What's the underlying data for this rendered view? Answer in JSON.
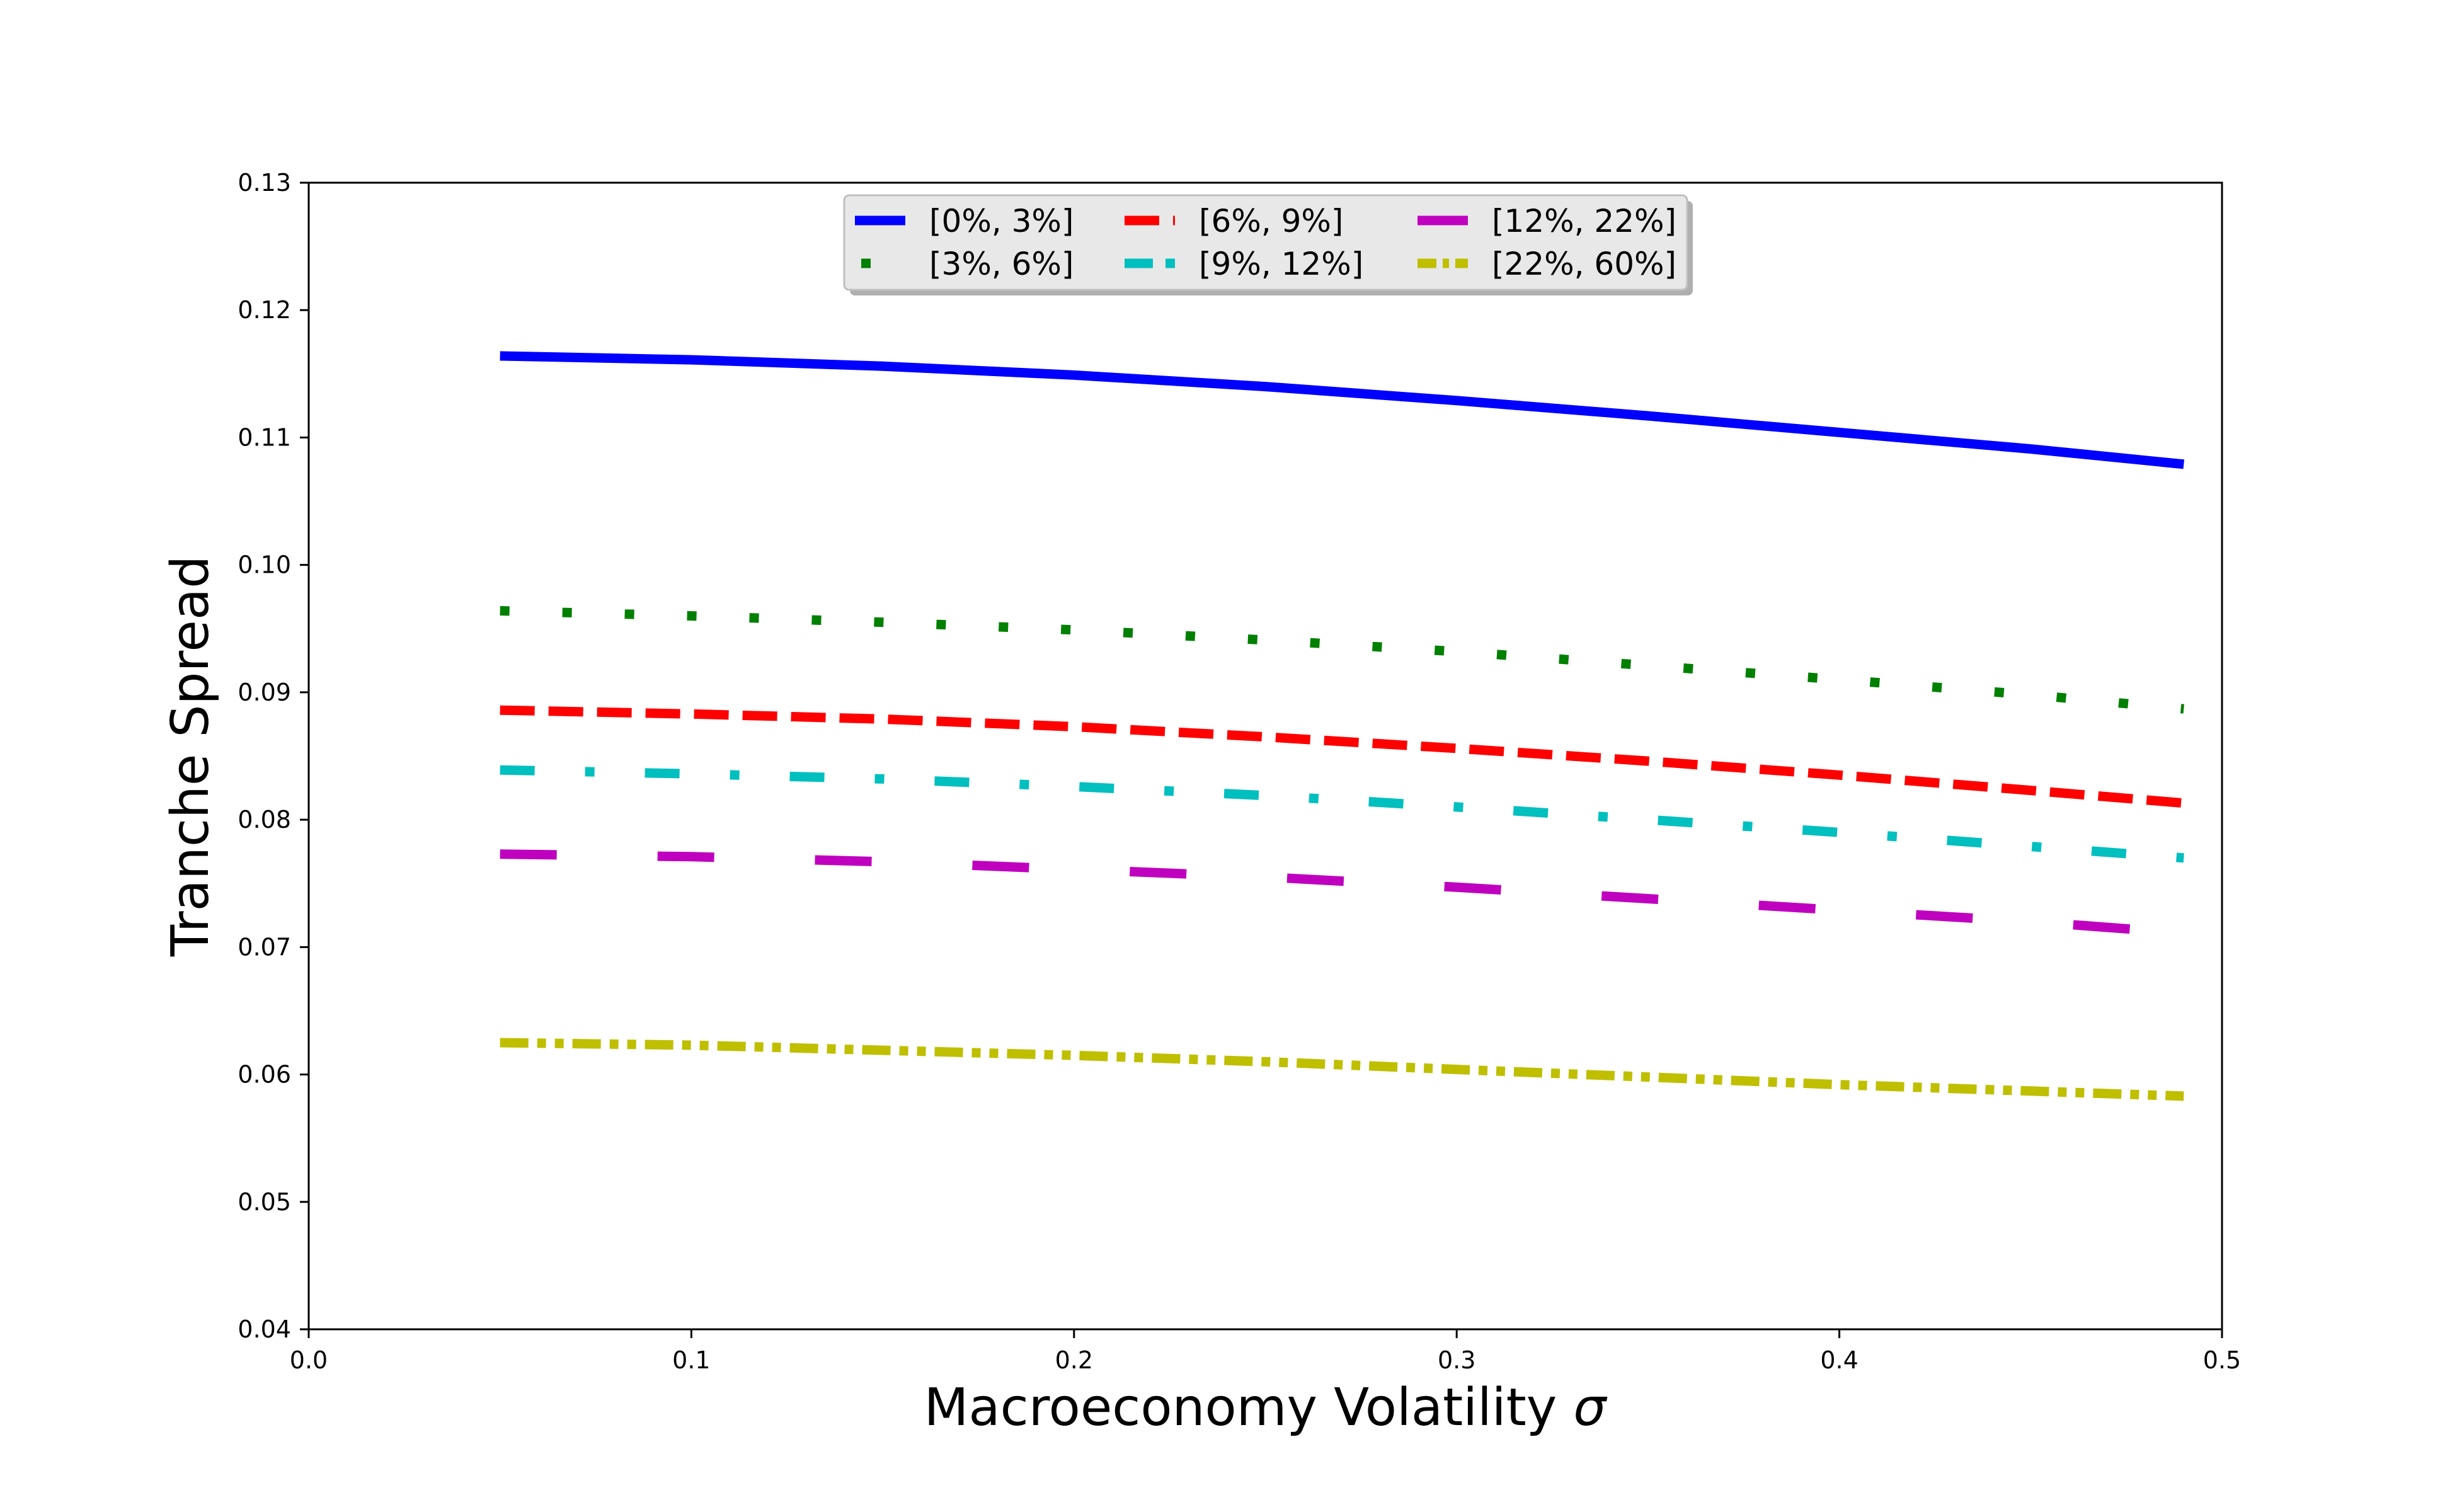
{
  "chart_data": {
    "type": "line",
    "title": "",
    "xlabel": "Macroeconomy Volatility",
    "xlabel_symbol": "σ",
    "ylabel": "Tranche Spread",
    "xlim": [
      0.0,
      0.5
    ],
    "ylim": [
      0.04,
      0.13
    ],
    "x_ticks": [
      0.0,
      0.1,
      0.2,
      0.3,
      0.4,
      0.5
    ],
    "x_tick_labels": [
      "0.0",
      "0.1",
      "0.2",
      "0.3",
      "0.4",
      "0.5"
    ],
    "y_ticks": [
      0.04,
      0.05,
      0.06,
      0.07,
      0.08,
      0.09,
      0.1,
      0.11,
      0.12,
      0.13
    ],
    "y_tick_labels": [
      "0.04",
      "0.05",
      "0.06",
      "0.07",
      "0.08",
      "0.09",
      "0.10",
      "0.11",
      "0.12",
      "0.13"
    ],
    "grid": false,
    "legend_position": "top-center",
    "x": [
      0.05,
      0.1,
      0.15,
      0.2,
      0.25,
      0.3,
      0.35,
      0.4,
      0.45,
      0.49
    ],
    "series": [
      {
        "name": "[0%, 3%]",
        "color": "#0000ff",
        "style": "solid",
        "values": [
          0.1164,
          0.1161,
          0.1156,
          0.1149,
          0.114,
          0.1129,
          0.1117,
          0.1104,
          0.1091,
          0.1079
        ]
      },
      {
        "name": "[3%, 6%]",
        "color": "#008000",
        "style": "dotted",
        "values": [
          0.0964,
          0.096,
          0.0955,
          0.0949,
          0.0941,
          0.0932,
          0.0921,
          0.091,
          0.0898,
          0.0887
        ]
      },
      {
        "name": "[6%, 9%]",
        "color": "#ff0000",
        "style": "dashed",
        "values": [
          0.0886,
          0.0883,
          0.0879,
          0.0873,
          0.0865,
          0.0856,
          0.0846,
          0.0835,
          0.0823,
          0.0813
        ]
      },
      {
        "name": "[9%, 12%]",
        "color": "#00bfbf",
        "style": "dashdot",
        "values": [
          0.0839,
          0.0836,
          0.0832,
          0.0826,
          0.0819,
          0.081,
          0.08,
          0.079,
          0.0779,
          0.077
        ]
      },
      {
        "name": "[12%, 22%]",
        "color": "#bf00bf",
        "style": "longdash",
        "values": [
          0.0773,
          0.0771,
          0.0767,
          0.0761,
          0.0755,
          0.0747,
          0.0738,
          0.0729,
          0.072,
          0.0711
        ]
      },
      {
        "name": "[22%, 60%]",
        "color": "#bfbf00",
        "style": "dashdotdot",
        "values": [
          0.0625,
          0.0623,
          0.0619,
          0.0615,
          0.061,
          0.0604,
          0.0598,
          0.0592,
          0.0587,
          0.0583
        ]
      }
    ]
  }
}
